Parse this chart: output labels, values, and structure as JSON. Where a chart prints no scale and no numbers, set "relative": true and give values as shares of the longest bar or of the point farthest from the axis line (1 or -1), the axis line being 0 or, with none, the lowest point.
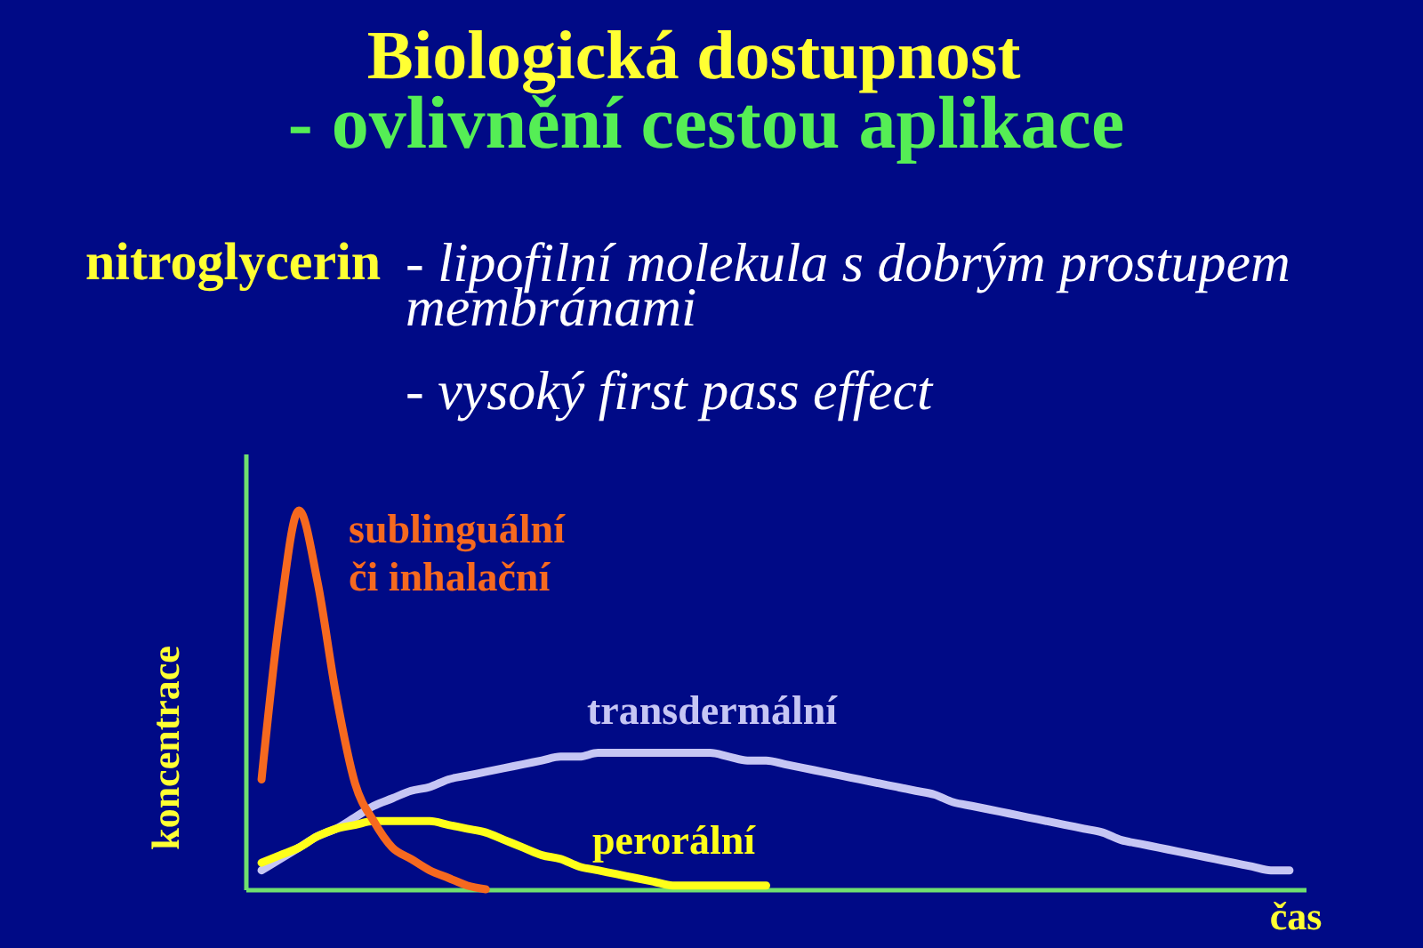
{
  "chart_data": {
    "type": "line",
    "title": "Biologická dostupnost",
    "subtitle": "- ovlivnění cestou aplikace",
    "annotations": [
      "nitroglycerin",
      "- lipofilní molekula s dobrým prostupem membránami",
      "- vysoký first pass effect"
    ],
    "xlabel": "čas",
    "ylabel": "koncentrace",
    "relative": true,
    "line_style": "solid",
    "categories": [
      null,
      null,
      null,
      null,
      null,
      null,
      null,
      null,
      null,
      null,
      null,
      null,
      null,
      null,
      null,
      null,
      null,
      null,
      null,
      null,
      null,
      null,
      null,
      null,
      null,
      null,
      null,
      null,
      null,
      null,
      null,
      null,
      null,
      null,
      null,
      null,
      null,
      null,
      null,
      null,
      null,
      null,
      null,
      null,
      null,
      null,
      null,
      null,
      null,
      null,
      null,
      null,
      null,
      null,
      null,
      null
    ],
    "series": [
      {
        "name": "sublinguální či inhalační",
        "color": "#f6691f",
        "values": [
          0.29,
          0.73,
          1,
          0.81,
          0.51,
          0.28,
          0.18,
          0.11,
          0.08,
          0.05,
          0.03,
          0.01,
          0,
          null,
          null,
          null,
          null,
          null,
          null,
          null,
          null,
          null,
          null,
          null,
          null,
          null,
          null,
          null,
          null,
          null,
          null,
          null,
          null,
          null,
          null,
          null,
          null,
          null,
          null,
          null,
          null,
          null,
          null,
          null,
          null,
          null,
          null,
          null,
          null,
          null,
          null,
          null,
          null,
          null,
          null,
          null
        ]
      },
      {
        "name": "perorální",
        "color": "#ffff1a",
        "values": [
          0.07,
          0.09,
          0.11,
          0.14,
          0.16,
          0.17,
          0.18,
          0.18,
          0.18,
          0.18,
          0.17,
          0.16,
          0.15,
          0.13,
          0.11,
          0.09,
          0.08,
          0.06,
          0.05,
          0.04,
          0.03,
          0.02,
          0.01,
          0.01,
          0.01,
          0.01,
          0.01,
          0.01,
          null,
          null,
          null,
          null,
          null,
          null,
          null,
          null,
          null,
          null,
          null,
          null,
          null,
          null,
          null,
          null,
          null,
          null,
          null,
          null,
          null,
          null,
          null,
          null,
          null,
          null,
          null,
          null
        ]
      },
      {
        "name": "transdermální",
        "color": "#c6c6f4",
        "values": [
          0.05,
          0.08,
          0.11,
          0.14,
          0.16,
          0.19,
          0.22,
          0.24,
          0.26,
          0.27,
          0.29,
          0.3,
          0.31,
          0.32,
          0.33,
          0.34,
          0.35,
          0.35,
          0.36,
          0.36,
          0.36,
          0.36,
          0.36,
          0.36,
          0.36,
          0.35,
          0.34,
          0.34,
          0.33,
          0.32,
          0.31,
          0.3,
          0.29,
          0.28,
          0.27,
          0.26,
          0.25,
          0.23,
          0.22,
          0.21,
          0.2,
          0.19,
          0.18,
          0.17,
          0.16,
          0.15,
          0.13,
          0.12,
          0.11,
          0.1,
          0.09,
          0.08,
          0.07,
          0.06,
          0.05,
          0.05
        ]
      }
    ]
  }
}
